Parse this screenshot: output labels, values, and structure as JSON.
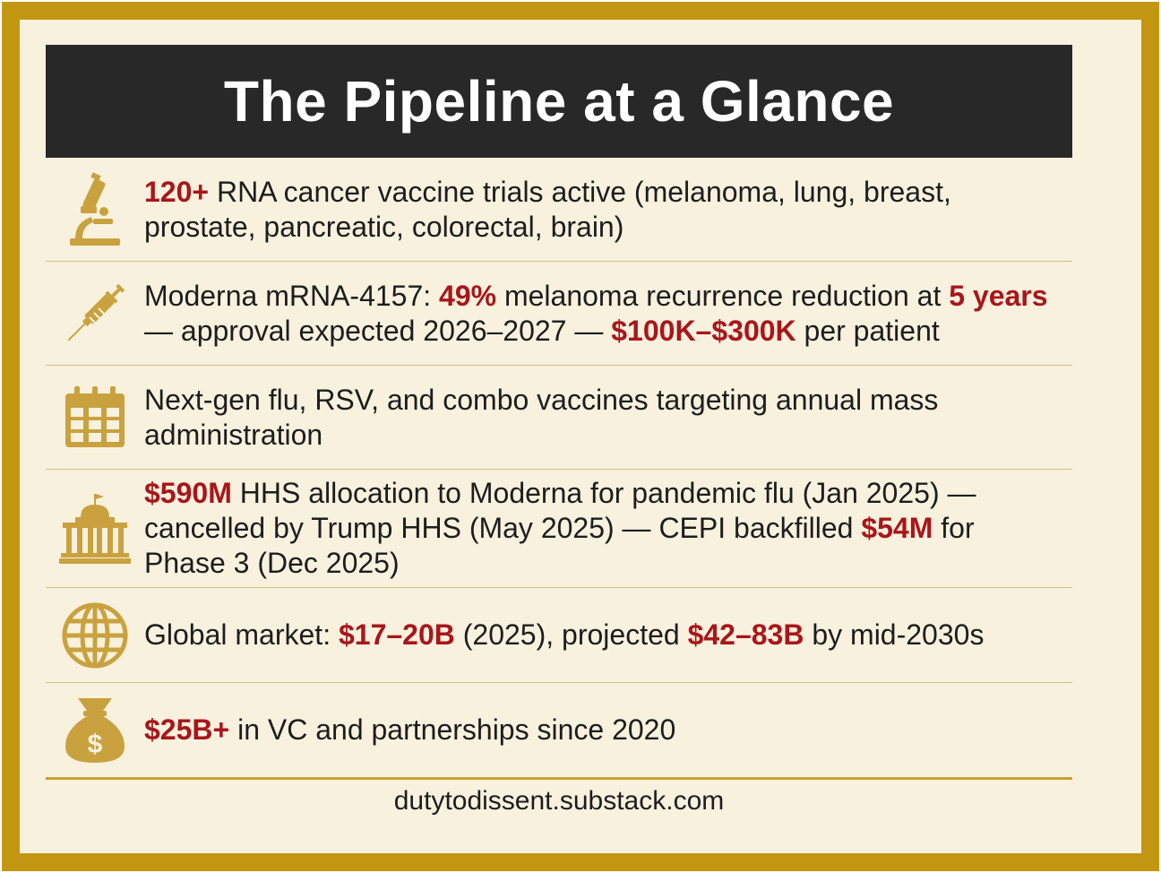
{
  "title": "The Pipeline at a Glance",
  "accent_color": "#a8161b",
  "icon_color": "#c9a23f",
  "rows": [
    {
      "icon": "microscope-icon",
      "parts": [
        {
          "t": "120+",
          "hl": true
        },
        {
          "t": " RNA cancer vaccine trials active (melanoma, lung, breast, prostate, pancreatic, colorectal, brain)",
          "hl": false
        }
      ]
    },
    {
      "icon": "syringe-icon",
      "parts": [
        {
          "t": "Moderna mRNA-4157: ",
          "hl": false
        },
        {
          "t": "49%",
          "hl": true
        },
        {
          "t": " melanoma recurrence reduction at ",
          "hl": false
        },
        {
          "t": "5 years",
          "hl": true
        },
        {
          "t": " — approval expected 2026–2027 — ",
          "hl": false
        },
        {
          "t": "$100K–$300K",
          "hl": true
        },
        {
          "t": " per patient",
          "hl": false
        }
      ]
    },
    {
      "icon": "calendar-icon",
      "parts": [
        {
          "t": "Next-gen flu, RSV, and combo vaccines targeting annual mass administration",
          "hl": false
        }
      ]
    },
    {
      "icon": "government-building-icon",
      "parts": [
        {
          "t": "$590M",
          "hl": true
        },
        {
          "t": " HHS allocation to Moderna for pandemic flu (Jan 2025) — cancelled by Trump HHS (May 2025) — CEPI backfilled ",
          "hl": false
        },
        {
          "t": "$54M",
          "hl": true
        },
        {
          "t": " for Phase 3 (Dec 2025)",
          "hl": false
        }
      ]
    },
    {
      "icon": "globe-icon",
      "parts": [
        {
          "t": "Global market: ",
          "hl": false
        },
        {
          "t": "$17–20B",
          "hl": true
        },
        {
          "t": " (2025), projected ",
          "hl": false
        },
        {
          "t": "$42–83B",
          "hl": true
        },
        {
          "t": " by mid-2030s",
          "hl": false
        }
      ]
    },
    {
      "icon": "money-bag-icon",
      "parts": [
        {
          "t": "$25B+",
          "hl": true
        },
        {
          "t": " in VC and partnerships since 2020",
          "hl": false
        }
      ]
    }
  ],
  "footer": "dutytodissent.substack.com"
}
